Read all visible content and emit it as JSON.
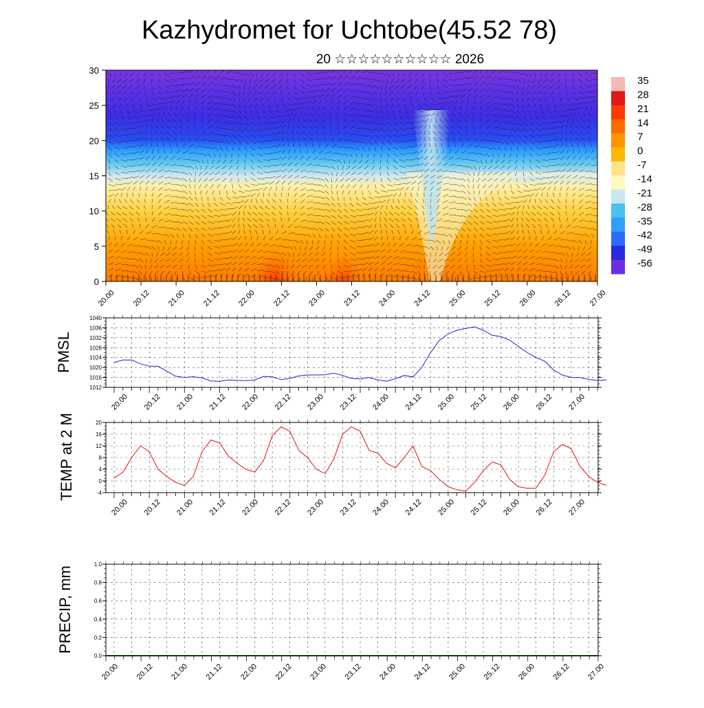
{
  "header": {
    "title": "Kazhydromet for Uchtobe(45.52 78)",
    "subtitle": "20 ☆☆☆☆☆☆☆☆☆☆ 2026"
  },
  "time_labels": [
    "20.00",
    "20.12",
    "21.00",
    "21.12",
    "22.00",
    "22.12",
    "23.00",
    "23.12",
    "24.00",
    "24.12",
    "25.00",
    "25.12",
    "26.00",
    "26.12",
    "27.00"
  ],
  "colors": {
    "pmsl_line": "#1f1fd6",
    "temp_line": "#e01010",
    "precip_line": "#004400"
  },
  "chart_data": [
    {
      "id": "cross-section",
      "type": "heatmap",
      "title": "",
      "ylim": [
        0,
        30
      ],
      "yticks": [
        "0",
        "5",
        "10",
        "15",
        "20",
        "25",
        "30"
      ],
      "x": [
        "20.00",
        "20.12",
        "21.00",
        "21.12",
        "22.00",
        "22.12",
        "23.00",
        "23.12",
        "24.00",
        "24.12",
        "25.00",
        "25.12",
        "26.00",
        "26.12",
        "27.00"
      ],
      "colorbar": [
        "35",
        "28",
        "21",
        "14",
        "7",
        "0",
        "-7",
        "-14",
        "-21",
        "-28",
        "-35",
        "-42",
        "-49",
        "-56"
      ],
      "colorbar_colors": [
        "#f4b8b8",
        "#e01818",
        "#ff3a00",
        "#ff6a00",
        "#ff9400",
        "#ffb800",
        "#ffe28a",
        "#fff8c0",
        "#c8e6f0",
        "#4cc0ee",
        "#2fa0ff",
        "#2a6cff",
        "#2a2ae0",
        "#6a30e0"
      ],
      "temperature_profile_by_level": [
        {
          "level": 0,
          "value": 14
        },
        {
          "level": 5,
          "value": 7
        },
        {
          "level": 10,
          "value": 0
        },
        {
          "level": 14,
          "value": -10
        },
        {
          "level": 16,
          "value": -22
        },
        {
          "level": 18,
          "value": -35
        },
        {
          "level": 20,
          "value": -49
        },
        {
          "level": 24,
          "value": -52
        },
        {
          "level": 28,
          "value": -56
        },
        {
          "level": 30,
          "value": -56
        }
      ]
    },
    {
      "id": "pmsl",
      "type": "line",
      "ylabel": "PMSL",
      "ylim": [
        1012,
        1040
      ],
      "yticks": [
        "1012",
        "1016",
        "1020",
        "1024",
        "1028",
        "1032",
        "1036",
        "1040"
      ],
      "series": [
        {
          "name": "PMSL",
          "x": [
            0,
            3,
            6,
            9,
            12,
            15,
            18,
            21,
            24,
            27,
            30,
            33,
            36,
            39,
            42,
            45,
            48,
            51,
            54,
            57,
            60,
            63,
            66,
            69,
            72,
            75,
            78,
            81,
            84,
            87,
            90,
            93,
            96,
            99,
            102,
            105,
            108,
            111,
            114,
            117,
            120,
            123,
            126,
            129,
            132,
            135,
            138,
            141,
            144,
            147,
            150,
            153,
            156,
            159,
            162,
            165,
            168
          ],
          "values": [
            1022,
            1023,
            1023,
            1021.5,
            1020.5,
            1020.5,
            1018.5,
            1016.5,
            1016,
            1016.3,
            1015.8,
            1014.6,
            1014.4,
            1015,
            1014.8,
            1014.7,
            1015,
            1016.4,
            1016.2,
            1015.1,
            1015.6,
            1016.6,
            1017,
            1017,
            1017.1,
            1017.7,
            1016.8,
            1015.6,
            1015.4,
            1016,
            1015,
            1014.5,
            1015.5,
            1016.8,
            1016.2,
            1020,
            1026,
            1031,
            1033.5,
            1035,
            1035.8,
            1036.4,
            1035,
            1033,
            1032.5,
            1031,
            1028.5,
            1026,
            1024,
            1022.5,
            1019,
            1017,
            1016,
            1016,
            1015.2,
            1014.8,
            1015
          ]
        }
      ]
    },
    {
      "id": "temp2m",
      "type": "line",
      "ylabel": "TEMP at 2 M",
      "ylim": [
        -4,
        20
      ],
      "yticks": [
        "-4",
        "0",
        "4",
        "8",
        "12",
        "16",
        "20"
      ],
      "series": [
        {
          "name": "TEMP",
          "x": [
            0,
            3,
            6,
            9,
            12,
            15,
            18,
            21,
            24,
            27,
            30,
            33,
            36,
            39,
            42,
            45,
            48,
            51,
            54,
            57,
            60,
            63,
            66,
            69,
            72,
            75,
            78,
            81,
            84,
            87,
            90,
            93,
            96,
            99,
            102,
            105,
            108,
            111,
            114,
            117,
            120,
            123,
            126,
            129,
            132,
            135,
            138,
            141,
            144,
            147,
            150,
            153,
            156,
            159,
            162,
            165,
            168
          ],
          "values": [
            1,
            3,
            8,
            12,
            10,
            4,
            1.5,
            -0.5,
            -1.5,
            1.5,
            10,
            14,
            13,
            8.5,
            6,
            4,
            3,
            7,
            15.5,
            18.5,
            17,
            10.5,
            8,
            4,
            2.5,
            7.5,
            16,
            18.5,
            17,
            10.5,
            9.5,
            6,
            4.5,
            8,
            12,
            5,
            3.5,
            0.5,
            -2,
            -3,
            -3.5,
            -0.5,
            3.5,
            6.5,
            5.5,
            0.5,
            -2,
            -2.5,
            -2.5,
            2,
            10,
            12.5,
            11,
            5,
            1.5,
            -0.5,
            -1.5
          ]
        }
      ]
    },
    {
      "id": "precip",
      "type": "line",
      "ylabel": "PRECIP, mm",
      "ylim": [
        0,
        1
      ],
      "yticks": [
        "0.0",
        "0.2",
        "0.4",
        "0.6",
        "0.8",
        "1.0"
      ],
      "series": [
        {
          "name": "PRECIP",
          "x": [
            0,
            12,
            24,
            36,
            48,
            60,
            72,
            84,
            96,
            108,
            120,
            132,
            144,
            156,
            168
          ],
          "values": [
            0,
            0,
            0,
            0,
            0,
            0,
            0,
            0,
            0,
            0,
            0,
            0,
            0,
            0,
            0
          ]
        }
      ]
    }
  ]
}
